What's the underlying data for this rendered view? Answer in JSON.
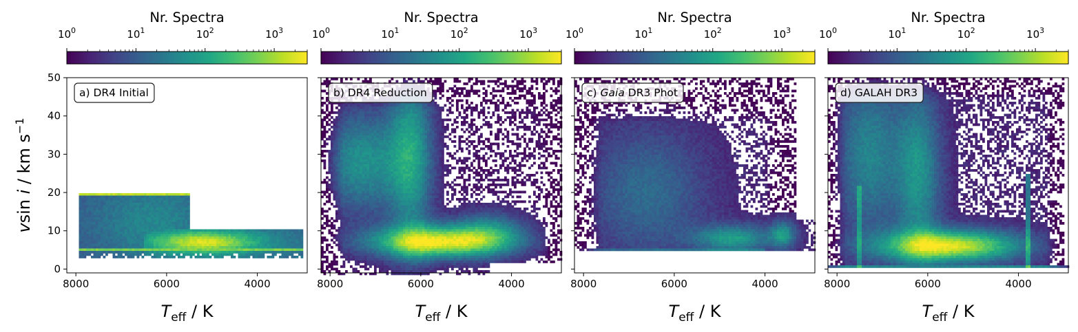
{
  "figure": {
    "colorbar_label": "Nr. Spectra",
    "colorbar_ticks": [
      {
        "base": "10",
        "exp": "0"
      },
      {
        "base": "10",
        "exp": "1"
      },
      {
        "base": "10",
        "exp": "2"
      },
      {
        "base": "10",
        "exp": "3"
      }
    ],
    "colormap": [
      "#440154",
      "#482475",
      "#414487",
      "#355f8d",
      "#2a788e",
      "#21918c",
      "#22a884",
      "#44bf70",
      "#7ad151",
      "#bddf26",
      "#fde725"
    ],
    "panel_labels": [
      {
        "pre": "a) DR4 Initial",
        "ital": "",
        "post": ""
      },
      {
        "pre": "b) DR4 Reduction",
        "ital": "",
        "post": ""
      },
      {
        "pre": "c) ",
        "ital": "Gaia",
        "post": " DR3 Phot"
      },
      {
        "pre": "d) GALAH DR3",
        "ital": "",
        "post": ""
      }
    ],
    "xlabel": {
      "sym": "T",
      "sub": "eff",
      "rest": " / K"
    },
    "ylabel": {
      "sym": "v",
      "mid": "sin ",
      "i": "i",
      "rest": " / km s",
      "exp": "−1"
    },
    "x_tick_labels": [
      "8000",
      "6000",
      "4000"
    ],
    "y_tick_labels": [
      "0",
      "10",
      "20",
      "30",
      "40",
      "50"
    ]
  },
  "chart_data": [
    {
      "type": "heatmap",
      "panel": "a) DR4 Initial",
      "x": "Teff / K",
      "y": "v sin i / km s^-1",
      "xlim": [
        8200,
        2900
      ],
      "ylim": [
        -1,
        50
      ],
      "xticks": [
        8000,
        6000,
        4000
      ],
      "yticks": [
        0,
        10,
        20,
        30,
        40,
        50
      ],
      "colorscale": "log",
      "color_range": [
        1,
        3000
      ],
      "regions": [
        {
          "teff": [
            7950,
            5500
          ],
          "vsini": [
            3,
            20
          ],
          "peak": "edge rows at 5 and 20 km/s"
        },
        {
          "teff": [
            6500,
            3000
          ],
          "vsini": [
            3,
            10.5
          ],
          "peak": "Teff 6000-4500 K, vsini 5-9 km/s"
        }
      ]
    },
    {
      "type": "heatmap",
      "panel": "b) DR4 Reduction",
      "x": "Teff / K",
      "y": "v sin i / km s^-1",
      "xlim": [
        8200,
        2900
      ],
      "ylim": [
        -1,
        50
      ],
      "colorscale": "log",
      "color_range": [
        1,
        3000
      ],
      "regions": [
        {
          "teff": [
            8000,
            3000
          ],
          "vsini": [
            0,
            50
          ],
          "peak": "Teff ~5800 K, vsini ~6 km/s"
        }
      ]
    },
    {
      "type": "heatmap",
      "panel": "c) Gaia DR3 Phot",
      "x": "Teff / K",
      "y": "v sin i / km s^-1",
      "xlim": [
        8200,
        2900
      ],
      "ylim": [
        -1,
        50
      ],
      "colorscale": "log",
      "color_range": [
        1,
        3000
      ],
      "regions": [
        {
          "teff": [
            8000,
            3000
          ],
          "vsini": [
            5,
            50
          ],
          "peak": "Teff 5000-3500 K, vsini ~8 km/s"
        }
      ]
    },
    {
      "type": "heatmap",
      "panel": "d) GALAH DR3",
      "x": "Teff / K",
      "y": "v sin i / km s^-1",
      "xlim": [
        8200,
        2900
      ],
      "ylim": [
        -1,
        50
      ],
      "colorscale": "log",
      "color_range": [
        1,
        3000
      ],
      "regions": [
        {
          "teff": [
            8000,
            3000
          ],
          "vsini": [
            0,
            50
          ],
          "peak": "Teff 6000-4500 K, vsini ~6 km/s"
        }
      ]
    }
  ]
}
